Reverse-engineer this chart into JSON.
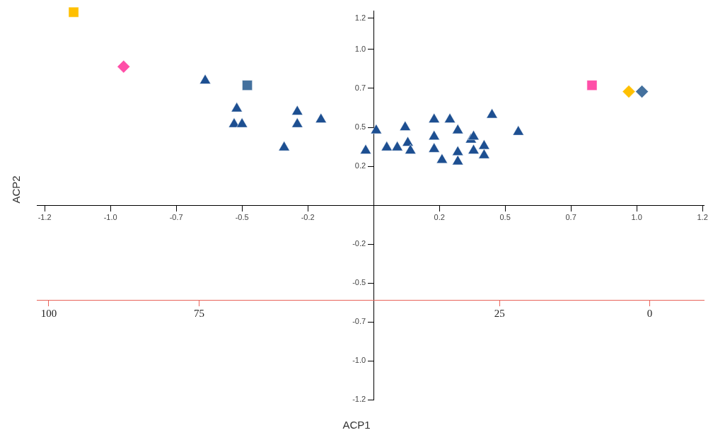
{
  "chart_data": {
    "type": "scatter",
    "xlabel": "ACP1",
    "ylabel": "ACP2",
    "legend": false,
    "grid": false,
    "xlim": [
      -1.28,
      1.255
    ],
    "ylim": [
      -1.25,
      1.25
    ],
    "xticks": [
      {
        "value": -1.25,
        "label": "-1.2"
      },
      {
        "value": -1.0,
        "label": "-1.0"
      },
      {
        "value": -0.75,
        "label": "-0.7"
      },
      {
        "value": -0.5,
        "label": "-0.5"
      },
      {
        "value": -0.25,
        "label": "-0.2"
      },
      {
        "value": 0.25,
        "label": "0.2"
      },
      {
        "value": 0.5,
        "label": "0.5"
      },
      {
        "value": 0.75,
        "label": "0.7"
      },
      {
        "value": 1.0,
        "label": "1.0"
      },
      {
        "value": 1.25,
        "label": "1.2"
      }
    ],
    "yticks": [
      {
        "value": -1.25,
        "label": "-1.2"
      },
      {
        "value": -1.0,
        "label": "-1.0"
      },
      {
        "value": -0.75,
        "label": "-0.7"
      },
      {
        "value": -0.5,
        "label": "-0.5"
      },
      {
        "value": -0.25,
        "label": "-0.2"
      },
      {
        "value": 0.25,
        "label": "0.2"
      },
      {
        "value": 0.5,
        "label": "0.5"
      },
      {
        "value": 0.75,
        "label": "0.7"
      },
      {
        "value": 1.0,
        "label": "1.0"
      },
      {
        "value": 1.2,
        "label": "1.2"
      }
    ],
    "x2lim": [
      102,
      -9
    ],
    "x2ticks": [
      100,
      75,
      25,
      0
    ],
    "series": [
      {
        "color": "#1d4f91",
        "marker": "triangle",
        "x": [
          -0.64,
          -0.52,
          -0.53,
          -0.5,
          -0.34,
          -0.29,
          -0.29,
          -0.2,
          -0.03,
          0.01,
          0.05,
          0.09,
          0.12,
          0.13,
          0.14,
          0.23,
          0.23,
          0.23,
          0.26,
          0.29,
          0.32,
          0.32,
          0.32,
          0.37,
          0.38,
          0.38,
          0.42,
          0.42,
          0.45,
          0.55
        ],
        "values": [
          0.8,
          0.62,
          0.52,
          0.52,
          0.37,
          0.6,
          0.52,
          0.55,
          0.35,
          0.48,
          0.37,
          0.37,
          0.5,
          0.4,
          0.35,
          0.55,
          0.44,
          0.36,
          0.29,
          0.55,
          0.48,
          0.34,
          0.28,
          0.42,
          0.44,
          0.35,
          0.38,
          0.32,
          0.58,
          0.47
        ]
      },
      {
        "color": "#ffc000",
        "marker": "square",
        "x": [
          -1.14
        ],
        "values": [
          1.24
        ]
      },
      {
        "color": "#ff4fa8",
        "marker": "diamond",
        "x": [
          -0.95
        ],
        "values": [
          0.89
        ]
      },
      {
        "color": "#44719e",
        "marker": "square",
        "x": [
          -0.48
        ],
        "values": [
          0.77
        ]
      },
      {
        "color": "#ff4fa8",
        "marker": "square",
        "x": [
          0.83
        ],
        "values": [
          0.77
        ]
      },
      {
        "color": "#ffc000",
        "marker": "diamond",
        "x": [
          0.97
        ],
        "values": [
          0.73
        ]
      },
      {
        "color": "#44719e",
        "marker": "diamond",
        "x": [
          1.02
        ],
        "values": [
          0.73
        ]
      }
    ]
  }
}
